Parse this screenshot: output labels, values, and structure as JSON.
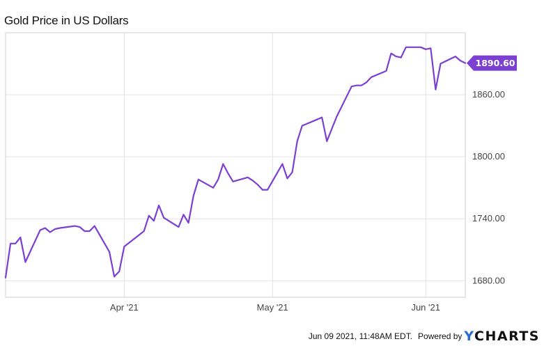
{
  "chart_data": {
    "type": "line",
    "title": "Gold Price in US Dollars",
    "xlabel": "",
    "ylabel": "",
    "ylim": [
      1664,
      1920
    ],
    "xlim": [
      "2021-03-08",
      "2021-06-09"
    ],
    "grid": true,
    "y_ticks": [
      1680,
      1740,
      1800,
      1860
    ],
    "y_tick_labels": [
      "1680.00",
      "1740.00",
      "1800.00",
      "1860.00"
    ],
    "x_ticks": [
      "2021-04-01",
      "2021-05-01",
      "2021-06-01"
    ],
    "x_tick_labels": [
      "Apr '21",
      "May '21",
      "Jun '21"
    ],
    "last_value_label": "1890.60",
    "series": [
      {
        "color": "#7b3fd1",
        "points": [
          [
            "2021-03-08",
            1683
          ],
          [
            "2021-03-09",
            1716
          ],
          [
            "2021-03-10",
            1716
          ],
          [
            "2021-03-11",
            1722
          ],
          [
            "2021-03-12",
            1698
          ],
          [
            "2021-03-15",
            1729
          ],
          [
            "2021-03-16",
            1731
          ],
          [
            "2021-03-17",
            1727
          ],
          [
            "2021-03-18",
            1730
          ],
          [
            "2021-03-19",
            1731
          ],
          [
            "2021-03-22",
            1733
          ],
          [
            "2021-03-23",
            1732
          ],
          [
            "2021-03-24",
            1728
          ],
          [
            "2021-03-25",
            1728
          ],
          [
            "2021-03-26",
            1733
          ],
          [
            "2021-03-29",
            1708
          ],
          [
            "2021-03-30",
            1684
          ],
          [
            "2021-03-31",
            1689
          ],
          [
            "2021-04-01",
            1713
          ],
          [
            "2021-04-05",
            1728
          ],
          [
            "2021-04-06",
            1743
          ],
          [
            "2021-04-07",
            1738
          ],
          [
            "2021-04-08",
            1753
          ],
          [
            "2021-04-09",
            1741
          ],
          [
            "2021-04-12",
            1732
          ],
          [
            "2021-04-13",
            1744
          ],
          [
            "2021-04-14",
            1736
          ],
          [
            "2021-04-15",
            1762
          ],
          [
            "2021-04-16",
            1778
          ],
          [
            "2021-04-19",
            1770
          ],
          [
            "2021-04-20",
            1778
          ],
          [
            "2021-04-21",
            1793
          ],
          [
            "2021-04-22",
            1784
          ],
          [
            "2021-04-23",
            1776
          ],
          [
            "2021-04-26",
            1780
          ],
          [
            "2021-04-27",
            1777
          ],
          [
            "2021-04-28",
            1773
          ],
          [
            "2021-04-29",
            1768
          ],
          [
            "2021-04-30",
            1768
          ],
          [
            "2021-05-03",
            1793
          ],
          [
            "2021-05-04",
            1779
          ],
          [
            "2021-05-05",
            1785
          ],
          [
            "2021-05-06",
            1815
          ],
          [
            "2021-05-07",
            1830
          ],
          [
            "2021-05-10",
            1836
          ],
          [
            "2021-05-11",
            1838
          ],
          [
            "2021-05-12",
            1815
          ],
          [
            "2021-05-13",
            1827
          ],
          [
            "2021-05-14",
            1839
          ],
          [
            "2021-05-17",
            1868
          ],
          [
            "2021-05-18",
            1869
          ],
          [
            "2021-05-19",
            1869
          ],
          [
            "2021-05-20",
            1872
          ],
          [
            "2021-05-21",
            1877
          ],
          [
            "2021-05-24",
            1883
          ],
          [
            "2021-05-25",
            1900
          ],
          [
            "2021-05-26",
            1897
          ],
          [
            "2021-05-27",
            1896
          ],
          [
            "2021-05-28",
            1906
          ],
          [
            "2021-05-31",
            1906
          ],
          [
            "2021-06-01",
            1904
          ],
          [
            "2021-06-02",
            1905
          ],
          [
            "2021-06-03",
            1865
          ],
          [
            "2021-06-04",
            1890
          ],
          [
            "2021-06-07",
            1897
          ],
          [
            "2021-06-08",
            1893
          ],
          [
            "2021-06-09",
            1890.6
          ]
        ]
      }
    ]
  },
  "footer": {
    "timestamp": "Jun 09 2021, 11:48AM EDT.",
    "powered_by": "Powered by",
    "logo": "YCHARTS"
  }
}
